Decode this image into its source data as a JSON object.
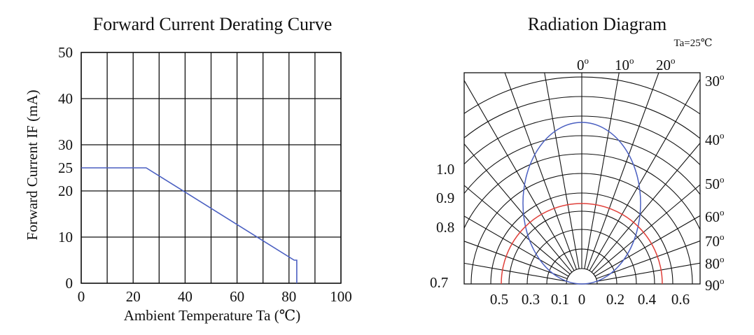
{
  "chart_data": [
    {
      "type": "line",
      "title": "Forward Current Derating Curve",
      "xlabel": "Ambient Temperature Ta (℃)",
      "ylabel": "Forward Current IF (mA)",
      "xlim": [
        0,
        100
      ],
      "ylim": [
        0,
        50
      ],
      "x_ticks": [
        "0",
        "20",
        "40",
        "60",
        "80",
        "100"
      ],
      "y_ticks": [
        "0",
        "10",
        "20",
        "25",
        "30",
        "40",
        "50"
      ],
      "grid": true,
      "series": [
        {
          "color": "#4a5fc1",
          "points": [
            [
              0,
              25
            ],
            [
              25,
              25
            ],
            [
              82,
              5
            ],
            [
              83,
              5
            ],
            [
              83,
              0
            ]
          ]
        }
      ]
    },
    {
      "type": "line",
      "title": "Radiation Diagram",
      "note": "Ta=25℃",
      "angle_labels_top": [
        "0",
        "10",
        "20"
      ],
      "angle_labels_right": [
        "30",
        "40",
        "50",
        "60",
        "70",
        "80",
        "90"
      ],
      "degree_sup": "o",
      "radial_labels_left": [
        "1.0",
        "0.9",
        "0.8",
        "0.7"
      ],
      "bottom_labels": [
        "0.5",
        "0.3",
        "0.1",
        "0",
        "0.2",
        "0.4",
        "0.6"
      ],
      "grid": true,
      "series": [
        {
          "color": "#4a5fc1",
          "shape": "ellipse",
          "max": 1.0
        },
        {
          "color": "#e0403a",
          "shape": "semicircle",
          "max": 0.5
        }
      ]
    }
  ]
}
